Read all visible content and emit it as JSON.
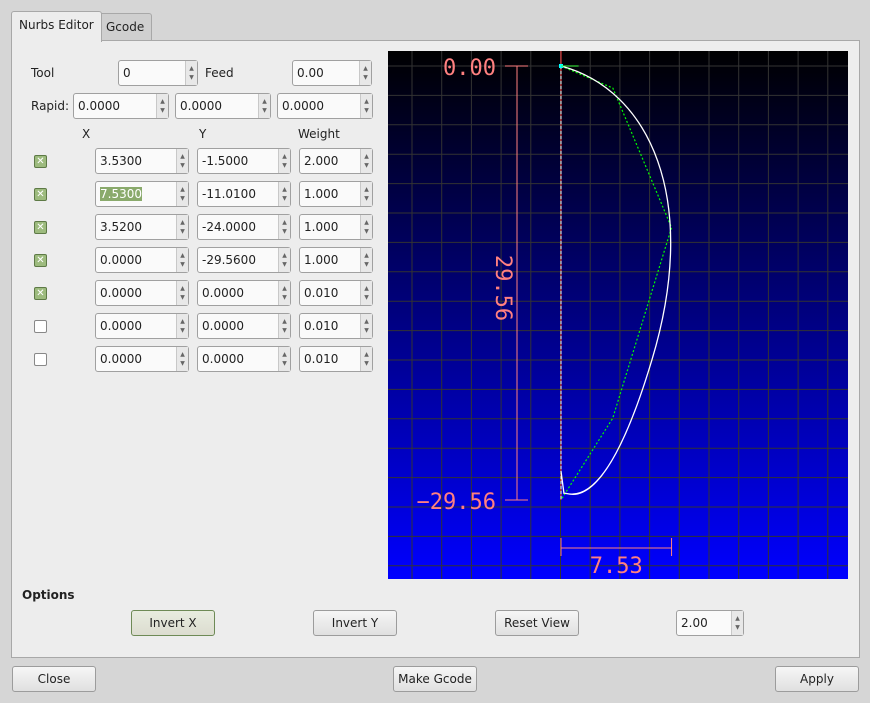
{
  "tabs": [
    {
      "label": "Nurbs Editor",
      "active": true
    },
    {
      "label": "Gcode",
      "active": false
    }
  ],
  "tool": {
    "label": "Tool",
    "value": "0"
  },
  "feed": {
    "label": "Feed",
    "value": "0.00"
  },
  "rapid": {
    "label": "Rapid:",
    "values": [
      "0.0000",
      "0.0000",
      "0.0000"
    ]
  },
  "headers": {
    "x": "X",
    "y": "Y",
    "weight": "Weight"
  },
  "points": [
    {
      "enabled": true,
      "x": "3.5300",
      "y": "-1.5000",
      "w": "2.000"
    },
    {
      "enabled": true,
      "x": "7.5300",
      "y": "-11.0100",
      "w": "1.000",
      "selected": true
    },
    {
      "enabled": true,
      "x": "3.5200",
      "y": "-24.0000",
      "w": "1.000"
    },
    {
      "enabled": true,
      "x": "0.0000",
      "y": "-29.5600",
      "w": "1.000"
    },
    {
      "enabled": true,
      "x": "0.0000",
      "y": "0.0000",
      "w": "0.010"
    },
    {
      "enabled": false,
      "x": "0.0000",
      "y": "0.0000",
      "w": "0.010"
    },
    {
      "enabled": false,
      "x": "0.0000",
      "y": "0.0000",
      "w": "0.010"
    }
  ],
  "preview": {
    "top_label": "0.00",
    "bottom_label": "−29.56",
    "height_label": "29.56",
    "width_label": "7.53",
    "background_top": "#000000",
    "background_bottom": "#0000ff",
    "curve_color": "#ffffff",
    "polygon_color": "#00ff00",
    "dimension_color": "#ff8080"
  },
  "options": {
    "title": "Options",
    "invert_x": "Invert X",
    "invert_y": "Invert Y",
    "reset_view": "Reset View",
    "scale": "2.00"
  },
  "footer": {
    "close": "Close",
    "make_gcode": "Make Gcode",
    "apply": "Apply"
  }
}
